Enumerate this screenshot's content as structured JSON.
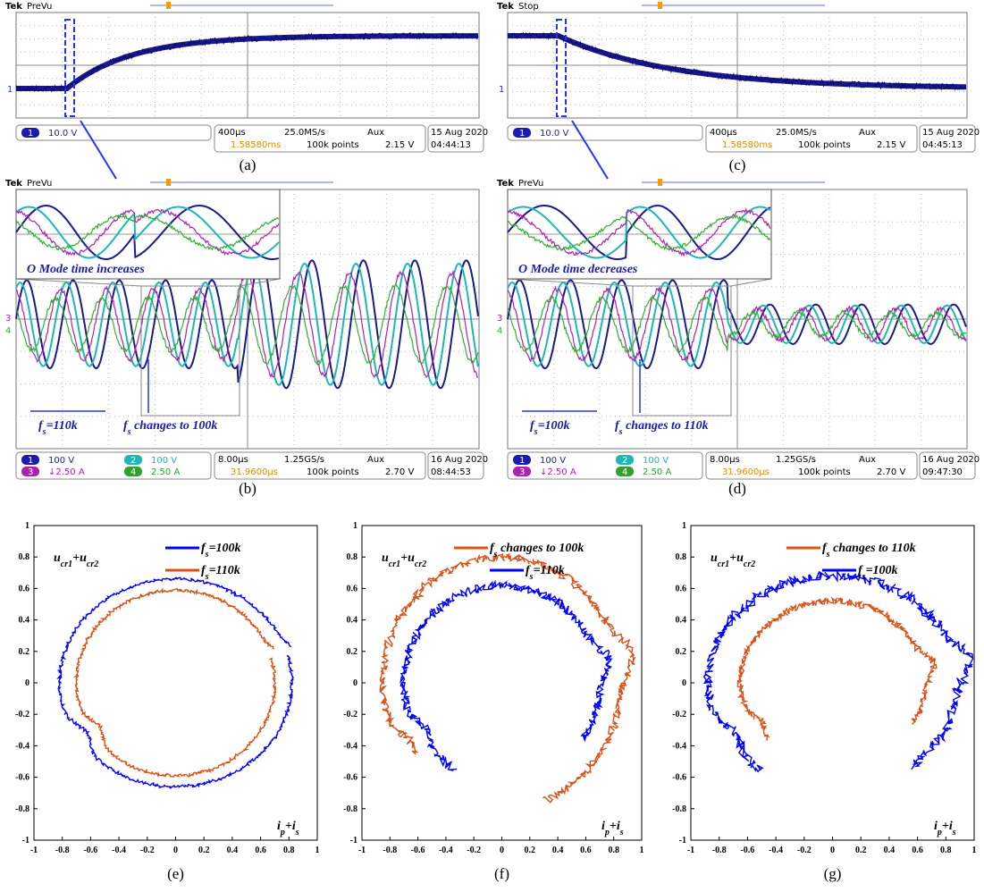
{
  "panels": [
    {
      "label": "(a)",
      "brand": "Tek",
      "status": "PreVu",
      "markers": [
        "1"
      ],
      "channels": [
        {
          "num": "1",
          "scale": "10.0 V"
        }
      ],
      "horizontal": "400µs",
      "rate": "25.0MS/s",
      "trigger": "Aux",
      "level": "2.15 V",
      "delay": "1.58580ms",
      "points": "100k points",
      "date": "15 Aug 2020",
      "time": "04:44:13"
    },
    {
      "label": "(c)",
      "brand": "Tek",
      "status": "Stop",
      "markers": [
        "1"
      ],
      "channels": [
        {
          "num": "1",
          "scale": "10.0 V"
        }
      ],
      "horizontal": "400µs",
      "rate": "25.0MS/s",
      "trigger": "Aux",
      "level": "2.15 V",
      "delay": "1.58580ms",
      "points": "100k points",
      "date": "15 Aug 2020",
      "time": "04:45:13"
    },
    {
      "label": "(b)",
      "brand": "Tek",
      "status": "PreVu",
      "markers": [
        "3",
        "4"
      ],
      "channels": [
        {
          "num": "1",
          "scale": "100 V"
        },
        {
          "num": "2",
          "scale": "100 V"
        },
        {
          "num": "3",
          "scale": "↓2.50 A"
        },
        {
          "num": "4",
          "scale": "2.50 A"
        }
      ],
      "horizontal": "8.00µs",
      "rate": "1.25GS/s",
      "trigger": "Aux",
      "level": "2.70 V",
      "delay": "31.9600µs",
      "points": "100k points",
      "date": "16 Aug 2020",
      "time": "08:44:53",
      "inset_note": "O Mode time increases",
      "fs_note": [
        "f",
        "s",
        "=110k"
      ],
      "change_note": [
        "f",
        "s",
        " changes to 100k"
      ]
    },
    {
      "label": "(d)",
      "brand": "Tek",
      "status": "PreVu",
      "markers": [
        "3",
        "4"
      ],
      "channels": [
        {
          "num": "1",
          "scale": "100 V"
        },
        {
          "num": "2",
          "scale": "100 V"
        },
        {
          "num": "3",
          "scale": "↓2.50 A"
        },
        {
          "num": "4",
          "scale": "2.50 A"
        }
      ],
      "horizontal": "8.00µs",
      "rate": "1.25GS/s",
      "trigger": "Aux",
      "level": "2.70 V",
      "delay": "31.9600µs",
      "points": "100k points",
      "date": "16 Aug 2020",
      "time": "09:47:30",
      "inset_note": "O Mode time decreases",
      "fs_note": [
        "f",
        "s",
        "=100k"
      ],
      "change_note": [
        "f",
        "s",
        " changes to 110k"
      ]
    }
  ],
  "plots": [
    {
      "label": "(e)",
      "ylabel": [
        "u",
        "cr1",
        "+u",
        "cr2"
      ],
      "xlabel": [
        "i",
        "p",
        "+i",
        "s"
      ],
      "legend": [
        {
          "text": [
            "f",
            "s",
            "=100k"
          ],
          "color": "#0000ff"
        },
        {
          "text": [
            "f",
            "s",
            "=110k"
          ],
          "color": "#d95319"
        }
      ]
    },
    {
      "label": "(f)",
      "ylabel": [
        "u",
        "cr1",
        "+u",
        "cr2"
      ],
      "xlabel": [
        "i",
        "p",
        "+i",
        "s"
      ],
      "legend": [
        {
          "text": [
            "f",
            "s",
            " changes to 100k"
          ],
          "color": "#d95319"
        },
        {
          "text": [
            "f",
            "s",
            "=110k"
          ],
          "color": "#0000ff"
        }
      ]
    },
    {
      "label": "(g)",
      "ylabel": [
        "u",
        "cr1",
        "+u",
        "cr2"
      ],
      "xlabel": [
        "i",
        "p",
        "+i",
        "s"
      ],
      "legend": [
        {
          "text": [
            "f",
            "s",
            " changes to 110k"
          ],
          "color": "#d95319"
        },
        {
          "text": [
            "f",
            "s",
            "=100k"
          ],
          "color": "#0000ff"
        }
      ]
    }
  ],
  "ticks": [
    -1,
    -0.8,
    -0.6,
    -0.4,
    -0.2,
    0,
    0.2,
    0.4,
    0.6,
    0.8,
    1
  ]
}
